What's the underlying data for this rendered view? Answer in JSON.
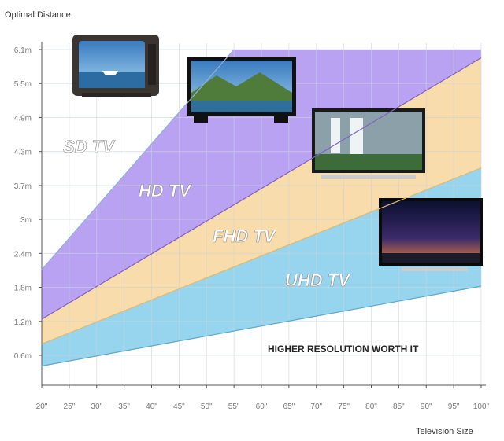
{
  "chart_data": {
    "type": "area",
    "ylabel": "Optimal Distance",
    "xlabel": "Television Size",
    "x_ticks": [
      "20\"",
      "25\"",
      "30\"",
      "35\"",
      "40\"",
      "45\"",
      "50\"",
      "55\"",
      "60\"",
      "65\"",
      "70\"",
      "75\"",
      "80\"",
      "85\"",
      "90\"",
      "95\"",
      "100\""
    ],
    "y_ticks": [
      "0.6m",
      "1.2m",
      "1.8m",
      "2.4m",
      "3m",
      "3.7m",
      "4.3m",
      "4.9m",
      "5.5m",
      "6.1m"
    ],
    "x_range": [
      20,
      100
    ],
    "y_range": [
      0,
      6.1
    ],
    "bands": [
      {
        "name": "SD TV",
        "color": "#86e3de"
      },
      {
        "name": "HD TV",
        "color": "#b49af2"
      },
      {
        "name": "FHD TV",
        "color": "#f8d9a4"
      },
      {
        "name": "UHD TV",
        "color": "#8ed1ee"
      }
    ],
    "boundaries": [
      {
        "x": [
          20,
          55
        ],
        "y": [
          2.1,
          6.1
        ]
      },
      {
        "x": [
          20,
          100
        ],
        "y": [
          1.2,
          5.95
        ]
      },
      {
        "x": [
          20,
          100
        ],
        "y": [
          0.75,
          3.95
        ]
      },
      {
        "x": [
          20,
          100
        ],
        "y": [
          0.35,
          1.8
        ]
      }
    ],
    "annotation": "HIGHER RESOLUTION WORTH IT",
    "grid": true
  },
  "icons": [
    "crt-tv-icon",
    "hd-tv-icon",
    "fhd-tv-icon",
    "uhd-tv-icon"
  ]
}
